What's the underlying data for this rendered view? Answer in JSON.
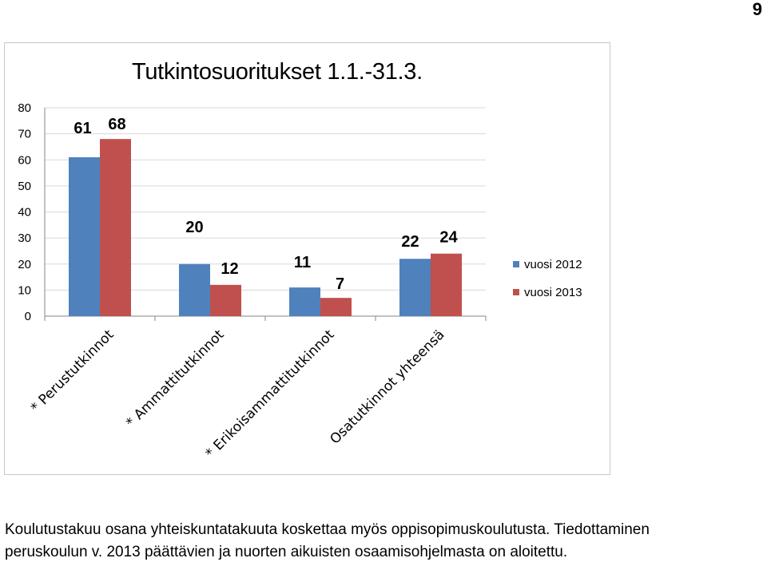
{
  "page_number": "9",
  "chart_data": {
    "type": "bar",
    "title": "Tutkintosuoritukset 1.1.-31.3.",
    "categories": [
      "* Perustutkinnot",
      "* Ammattitutkinnot",
      "* Erikoisammattitutkinnot",
      "Osatutkinnot yhteensä"
    ],
    "series": [
      {
        "name": "vuosi 2012",
        "values": [
          61,
          20,
          11,
          22
        ],
        "color": "#4f81bd"
      },
      {
        "name": "vuosi 2013",
        "values": [
          68,
          12,
          7,
          24
        ],
        "color": "#c0504d"
      }
    ],
    "ylim": [
      0,
      80
    ],
    "yticks": [
      "0",
      "10",
      "20",
      "30",
      "40",
      "50",
      "60",
      "70",
      "80"
    ],
    "grid": true,
    "legend_position": "right",
    "data_labels": true
  },
  "caption": {
    "line1": "Koulutustakuu osana yhteiskuntatakuuta koskettaa myös oppisopimuskoulutusta. Tiedottaminen",
    "line2": "peruskoulun v. 2013 päättävien ja nuorten aikuisten osaamisohjelmasta on aloitettu."
  }
}
